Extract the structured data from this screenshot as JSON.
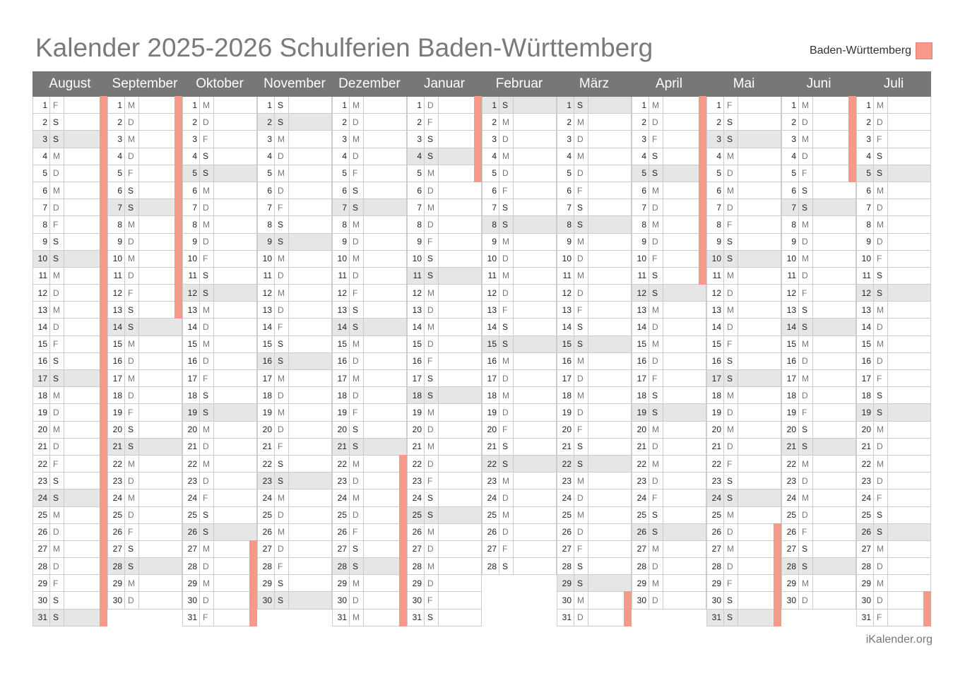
{
  "title": "Kalender 2025-2026 Schulferien Baden-Württemberg",
  "legend": {
    "label": "Baden-Württemberg",
    "color": "#f6998a"
  },
  "footer": "iKalender.org",
  "colors": {
    "header_bg": "#777777",
    "weekend_bg": "#e6e6e6",
    "holiday": "#f6998a"
  },
  "months": [
    {
      "name": "August",
      "days": 31,
      "start": "F",
      "holidays": [
        1,
        31
      ]
    },
    {
      "name": "September",
      "days": 30,
      "start": "M",
      "holidays": [
        1,
        13
      ]
    },
    {
      "name": "Oktober",
      "days": 31,
      "start": "M",
      "holidays": [
        27,
        31
      ]
    },
    {
      "name": "November",
      "days": 30,
      "start": "S",
      "holidays": []
    },
    {
      "name": "Dezember",
      "days": 31,
      "start": "M",
      "holidays": [
        22,
        31
      ]
    },
    {
      "name": "Januar",
      "days": 31,
      "start": "D",
      "holidays": [
        1,
        5
      ]
    },
    {
      "name": "Februar",
      "days": 28,
      "start": "S",
      "holidays": []
    },
    {
      "name": "März",
      "days": 31,
      "start": "S",
      "holidays": [
        30,
        31
      ]
    },
    {
      "name": "April",
      "days": 30,
      "start": "M",
      "holidays": [
        1,
        11
      ]
    },
    {
      "name": "Mai",
      "days": 31,
      "start": "F",
      "holidays": [
        26,
        31
      ]
    },
    {
      "name": "Juni",
      "days": 30,
      "start": "M",
      "holidays": [
        1,
        5
      ]
    },
    {
      "name": "Juli",
      "days": 31,
      "start": "M",
      "holidays": [
        30,
        31
      ]
    }
  ],
  "weekday_letters": [
    "M",
    "D",
    "M",
    "D",
    "F",
    "S",
    "S"
  ],
  "month_weekday_starts": [
    4,
    0,
    2,
    5,
    0,
    3,
    6,
    6,
    2,
    4,
    0,
    2
  ]
}
